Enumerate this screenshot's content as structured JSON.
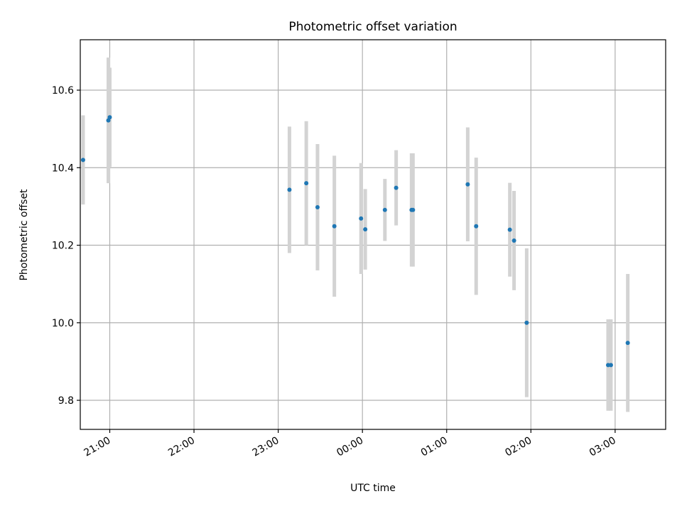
{
  "chart_data": {
    "type": "scatter",
    "title": "Photometric offset variation",
    "xlabel": "UTC time",
    "ylabel": "Photometric offset",
    "x_axis": "time",
    "xlim": [
      "20:39",
      "03:36"
    ],
    "ylim": [
      9.725,
      10.73
    ],
    "grid": true,
    "x_ticks": [
      {
        "time": "21:00",
        "label": "21:00"
      },
      {
        "time": "22:00",
        "label": "22:00"
      },
      {
        "time": "23:00",
        "label": "23:00"
      },
      {
        "time": "00:00",
        "label": "00:00"
      },
      {
        "time": "01:00",
        "label": "01:00"
      },
      {
        "time": "02:00",
        "label": "02:00"
      },
      {
        "time": "03:00",
        "label": "03:00"
      }
    ],
    "y_ticks": [
      {
        "value": 9.8,
        "label": "9.8"
      },
      {
        "value": 10.0,
        "label": "10.0"
      },
      {
        "value": 10.2,
        "label": "10.2"
      },
      {
        "value": 10.4,
        "label": "10.4"
      },
      {
        "value": 10.6,
        "label": "10.6"
      }
    ],
    "point_color": "#1f77b4",
    "errorbar_color": "#d3d3d3",
    "points": [
      {
        "time": "20:41",
        "y": 10.42,
        "yerr": 0.115
      },
      {
        "time": "20:59",
        "y": 10.522,
        "yerr": 0.162
      },
      {
        "time": "21:00",
        "y": 10.53,
        "yerr": 0.128
      },
      {
        "time": "23:08",
        "y": 10.343,
        "yerr": 0.163
      },
      {
        "time": "23:20",
        "y": 10.36,
        "yerr": 0.16
      },
      {
        "time": "23:28",
        "y": 10.298,
        "yerr": 0.163
      },
      {
        "time": "23:40",
        "y": 10.249,
        "yerr": 0.182
      },
      {
        "time": "23:59",
        "y": 10.269,
        "yerr": 0.143
      },
      {
        "time": "00:02",
        "y": 10.241,
        "yerr": 0.104
      },
      {
        "time": "00:16",
        "y": 10.291,
        "yerr": 0.08
      },
      {
        "time": "00:24",
        "y": 10.348,
        "yerr": 0.097
      },
      {
        "time": "00:35",
        "y": 10.291,
        "yerr": 0.146
      },
      {
        "time": "00:36",
        "y": 10.291,
        "yerr": 0.146
      },
      {
        "time": "01:15",
        "y": 10.357,
        "yerr": 0.147
      },
      {
        "time": "01:21",
        "y": 10.249,
        "yerr": 0.177
      },
      {
        "time": "01:45",
        "y": 10.24,
        "yerr": 0.121
      },
      {
        "time": "01:48",
        "y": 10.212,
        "yerr": 0.128
      },
      {
        "time": "01:57",
        "y": 10.0,
        "yerr": 0.192
      },
      {
        "time": "02:55",
        "y": 9.891,
        "yerr": 0.118
      },
      {
        "time": "02:57",
        "y": 9.891,
        "yerr": 0.118
      },
      {
        "time": "03:09",
        "y": 9.948,
        "yerr": 0.178
      }
    ]
  }
}
